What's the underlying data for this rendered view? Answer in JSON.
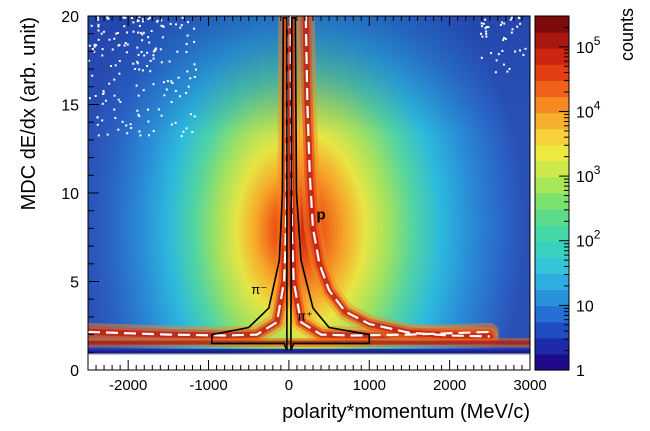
{
  "chart_data": {
    "type": "heatmap",
    "title": "",
    "xlabel": "polarity*momentum (MeV/c)",
    "ylabel": "MDC dE/dx (arb. unit)",
    "xlim": [
      -2500,
      3000
    ],
    "ylim": [
      0,
      20
    ],
    "x_ticks": [
      -2000,
      -1000,
      0,
      1000,
      2000,
      3000
    ],
    "x_tick_labels": [
      "-2000",
      "-1000",
      "0",
      "1000",
      "2000",
      "3000"
    ],
    "y_ticks": [
      0,
      5,
      10,
      15,
      20
    ],
    "y_tick_labels": [
      "0",
      "5",
      "10",
      "15",
      "20"
    ],
    "colorbar": {
      "label": "counts",
      "scale": "log",
      "range": [
        1,
        300000
      ],
      "ticks": [
        1,
        10,
        100,
        1000,
        10000,
        100000
      ],
      "tick_labels": [
        {
          "base": "1",
          "exp": ""
        },
        {
          "base": "10",
          "exp": ""
        },
        {
          "base": "10",
          "exp": "2"
        },
        {
          "base": "10",
          "exp": "3"
        },
        {
          "base": "10",
          "exp": "4"
        },
        {
          "base": "10",
          "exp": "5"
        }
      ],
      "colors": [
        "#1f0a8c",
        "#1f2aa8",
        "#1f4cc0",
        "#2470d4",
        "#2a92dc",
        "#2eaee0",
        "#34c4d8",
        "#3ad0c0",
        "#44d8a6",
        "#5cdc8a",
        "#7ce26e",
        "#a6e658",
        "#cde84a",
        "#ecea42",
        "#f7d23a",
        "#f7b02e",
        "#f58a22",
        "#f0621a",
        "#e43e14",
        "#cc2612",
        "#a81810",
        "#7e0a0a"
      ]
    },
    "annotations": [
      {
        "text": "p",
        "x": 400,
        "y": 8.5
      },
      {
        "text": "π⁻",
        "x": -370,
        "y": 4.3
      },
      {
        "text": "π⁺",
        "x": 200,
        "y": 2.8
      }
    ],
    "band_curves": {
      "style": "white dashed",
      "pion_minus": [
        [
          -2500,
          2.15
        ],
        [
          -1500,
          2.0
        ],
        [
          -800,
          1.95
        ],
        [
          -400,
          2.0
        ],
        [
          -150,
          2.7
        ],
        [
          -60,
          5.0
        ],
        [
          -40,
          7.5
        ],
        [
          -30,
          10.0
        ],
        [
          -20,
          20.0
        ]
      ],
      "pion_plus": [
        [
          20,
          20.0
        ],
        [
          30,
          10.0
        ],
        [
          40,
          7.5
        ],
        [
          60,
          5.0
        ],
        [
          150,
          2.7
        ],
        [
          400,
          2.0
        ],
        [
          800,
          1.95
        ],
        [
          1500,
          2.0
        ],
        [
          2500,
          2.15
        ]
      ],
      "proton": [
        [
          210,
          20.0
        ],
        [
          230,
          15.0
        ],
        [
          260,
          11.0
        ],
        [
          300,
          8.0
        ],
        [
          380,
          6.0
        ],
        [
          500,
          4.5
        ],
        [
          700,
          3.3
        ],
        [
          1000,
          2.6
        ],
        [
          1500,
          2.1
        ],
        [
          2000,
          1.95
        ],
        [
          2500,
          1.9
        ]
      ]
    },
    "cuts": {
      "style": "black solid",
      "pion_minus": [
        [
          -960,
          1.5
        ],
        [
          -960,
          2.0
        ],
        [
          -500,
          2.4
        ],
        [
          -250,
          3.5
        ],
        [
          -120,
          6.2
        ],
        [
          -80,
          10.0
        ],
        [
          -70,
          19.9
        ],
        [
          -25,
          19.9
        ],
        [
          -25,
          1.1
        ],
        [
          -60,
          1.5
        ]
      ],
      "pion_plus": [
        [
          1000,
          1.5
        ],
        [
          1000,
          2.0
        ],
        [
          500,
          2.4
        ],
        [
          300,
          3.5
        ],
        [
          150,
          6.2
        ],
        [
          95,
          10.0
        ],
        [
          80,
          19.9
        ],
        [
          35,
          19.9
        ],
        [
          25,
          1.1
        ],
        [
          60,
          1.5
        ]
      ]
    }
  }
}
